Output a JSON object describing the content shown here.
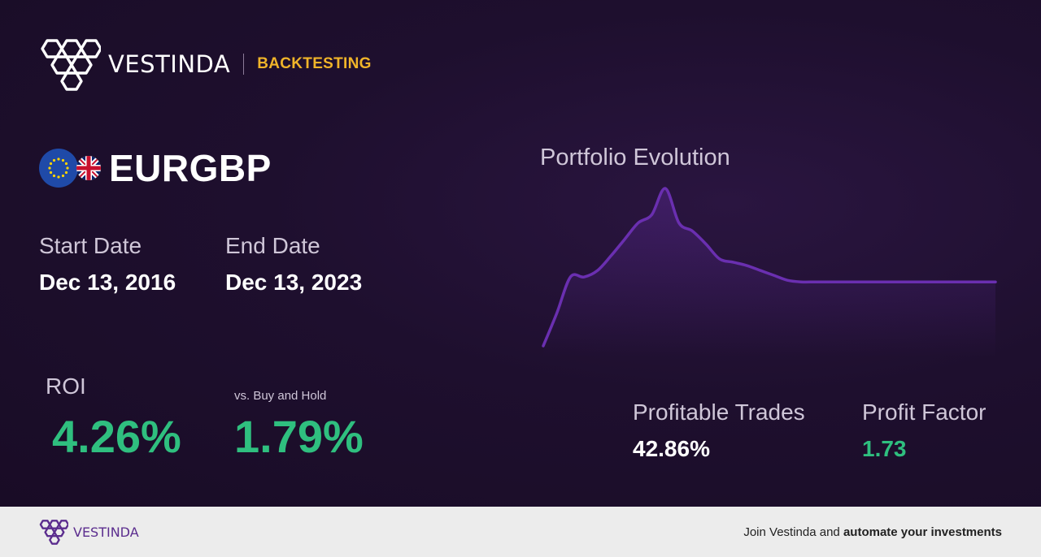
{
  "header": {
    "brand": "VESTINDA",
    "section": "BACKTESTING",
    "accent_color": "#f0b429"
  },
  "asset": {
    "pair": "EURGBP",
    "flags": [
      "eu-flag-icon",
      "uk-flag-icon"
    ]
  },
  "dates": {
    "start_label": "Start Date",
    "start_value": "Dec 13, 2016",
    "end_label": "End Date",
    "end_value": "Dec 13, 2023"
  },
  "metrics": {
    "roi_label": "ROI",
    "roi_value": "4.26%",
    "bh_label": "vs. Buy and Hold",
    "bh_value": "1.79%",
    "profitable_label": "Profitable Trades",
    "profitable_value": "42.86%",
    "pf_label": "Profit Factor",
    "pf_value": "1.73",
    "positive_color": "#2fbf7f"
  },
  "chart_data": {
    "type": "area",
    "title": "Portfolio Evolution",
    "xlabel": "",
    "ylabel": "",
    "grid": false,
    "x": [
      0,
      3,
      6,
      9,
      12,
      15,
      18,
      21,
      24,
      27,
      30,
      33,
      36,
      39,
      42,
      45,
      48,
      51,
      54,
      57,
      60,
      63,
      66,
      69,
      72,
      75,
      78,
      81,
      84,
      87,
      90,
      93,
      96,
      100
    ],
    "series": [
      {
        "values": [
          0,
          20,
          42,
          42,
          46,
          55,
          65,
          75,
          80,
          96,
          75,
          70,
          62,
          53,
          51,
          49,
          46,
          43,
          40,
          39,
          39,
          39,
          39,
          39,
          39,
          39,
          39,
          39,
          39,
          39,
          39,
          39,
          39,
          39
        ],
        "color": "#6a2fb0"
      }
    ],
    "ylim": [
      0,
      100
    ]
  },
  "footer": {
    "brand": "VESTINDA",
    "cta_prefix": "Join Vestinda and ",
    "cta_bold": "automate your investments",
    "brand_color": "#5b2d8e"
  }
}
